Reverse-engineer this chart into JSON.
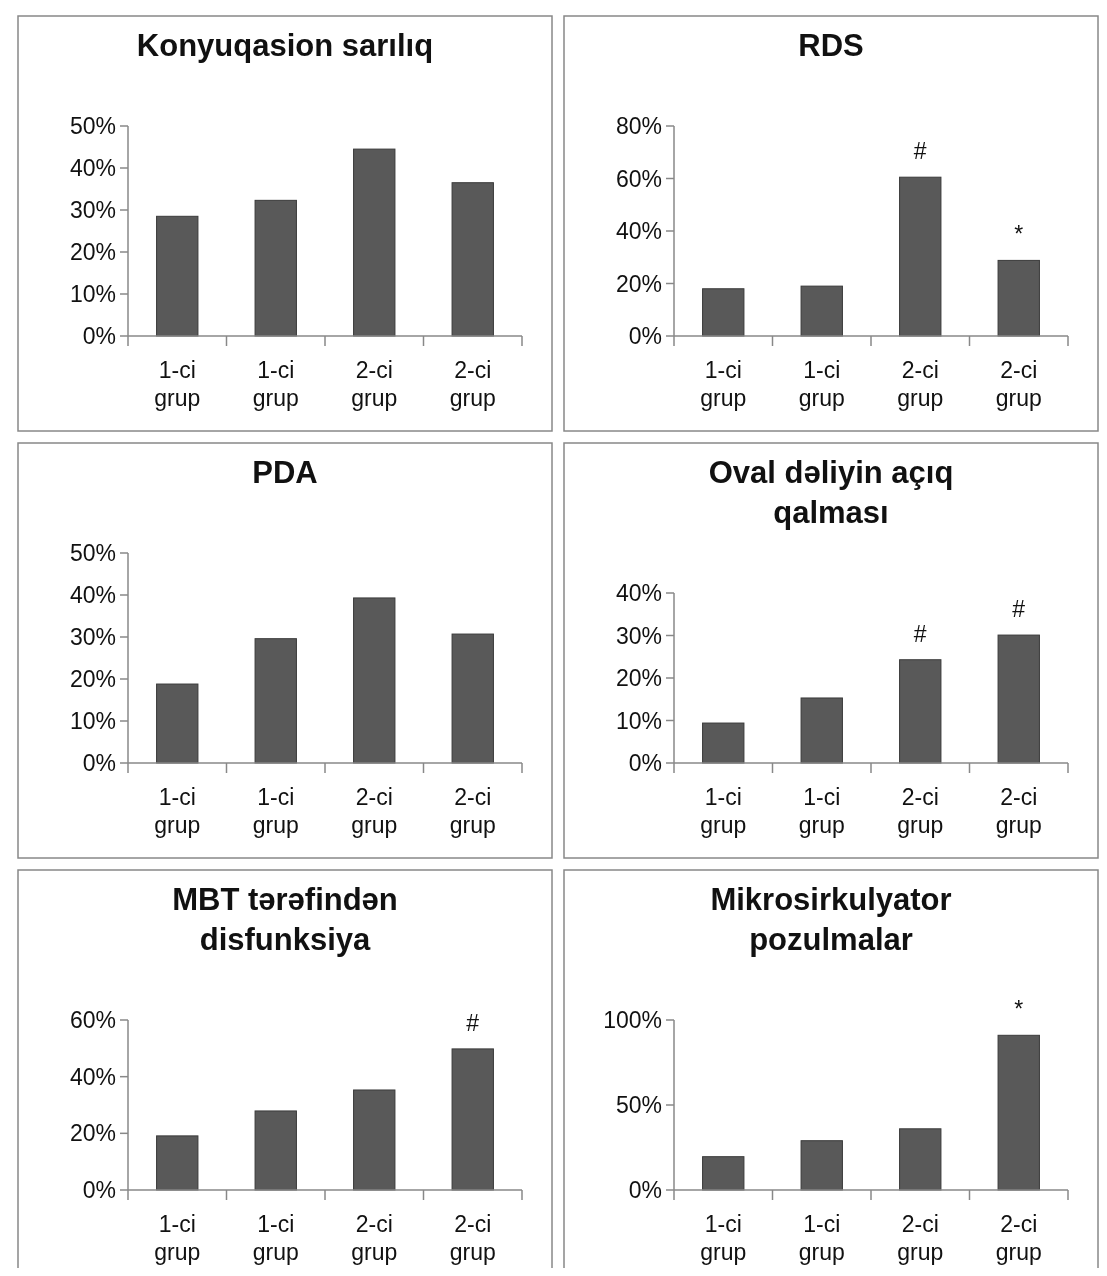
{
  "chart_data": [
    {
      "type": "bar",
      "title": "Konyuqasion sarılıq",
      "categories": [
        "1-ci grup",
        "1-ci grup",
        "2-ci grup",
        "2-ci grup"
      ],
      "values": [
        28.5,
        32.3,
        44.5,
        36.5
      ],
      "color": "#595959",
      "ylim": [
        0,
        50
      ],
      "yticks": [
        {
          "value": 0,
          "label": "0%"
        },
        {
          "value": 10,
          "label": "10%"
        },
        {
          "value": 20,
          "label": "20%"
        },
        {
          "value": 30,
          "label": "30%"
        },
        {
          "value": 40,
          "label": "40%"
        },
        {
          "value": 50,
          "label": "50%"
        }
      ]
    },
    {
      "type": "bar",
      "title": "RDS",
      "categories": [
        "1-ci grup",
        "1-ci grup",
        "2-ci grup",
        "2-ci grup"
      ],
      "values": [
        18,
        19,
        60.5,
        28.8
      ],
      "value_labels": [
        null,
        null,
        "#",
        "*"
      ],
      "color": "#595959",
      "ylim": [
        0,
        80
      ],
      "yticks": [
        {
          "value": 0,
          "label": "0%"
        },
        {
          "value": 20,
          "label": "20%"
        },
        {
          "value": 40,
          "label": "40%"
        },
        {
          "value": 60,
          "label": "60%"
        },
        {
          "value": 80,
          "label": "80%"
        }
      ]
    },
    {
      "type": "bar",
      "title": "PDA",
      "categories": [
        "1-ci grup",
        "1-ci grup",
        "2-ci grup",
        "2-ci grup"
      ],
      "values": [
        18.8,
        29.6,
        39.3,
        30.7
      ],
      "color": "#595959",
      "ylim": [
        0,
        50
      ],
      "yticks": [
        {
          "value": 0,
          "label": "0%"
        },
        {
          "value": 10,
          "label": "10%"
        },
        {
          "value": 20,
          "label": "20%"
        },
        {
          "value": 30,
          "label": "30%"
        },
        {
          "value": 40,
          "label": "40%"
        },
        {
          "value": 50,
          "label": "50%"
        }
      ]
    },
    {
      "type": "bar",
      "title": "Oval dəliyin açıq qalması",
      "categories": [
        "1-ci grup",
        "1-ci grup",
        "2-ci grup",
        "2-ci grup"
      ],
      "values": [
        9.4,
        15.3,
        24.3,
        30.1
      ],
      "value_labels": [
        null,
        null,
        "#",
        "#"
      ],
      "color": "#595959",
      "ylim": [
        0,
        40
      ],
      "yticks": [
        {
          "value": 0,
          "label": "0%"
        },
        {
          "value": 10,
          "label": "10%"
        },
        {
          "value": 20,
          "label": "20%"
        },
        {
          "value": 30,
          "label": "30%"
        },
        {
          "value": 40,
          "label": "40%"
        }
      ]
    },
    {
      "type": "bar",
      "title": "MBT tərəfindən disfunksiya",
      "categories": [
        "1-ci grup",
        "1-ci grup",
        "2-ci grup",
        "2-ci grup"
      ],
      "values": [
        19.1,
        27.9,
        35.3,
        49.8
      ],
      "value_labels": [
        null,
        null,
        null,
        "#"
      ],
      "color": "#595959",
      "ylim": [
        0,
        60
      ],
      "yticks": [
        {
          "value": 0,
          "label": "0%"
        },
        {
          "value": 20,
          "label": "20%"
        },
        {
          "value": 40,
          "label": "40%"
        },
        {
          "value": 60,
          "label": "60%"
        }
      ]
    },
    {
      "type": "bar",
      "title": "Mikrosirkulyator pozulmalar",
      "categories": [
        "1-ci grup",
        "1-ci grup",
        "2-ci grup",
        "2-ci grup"
      ],
      "values": [
        19.6,
        29,
        36,
        91
      ],
      "value_labels": [
        null,
        null,
        null,
        "*"
      ],
      "color": "#595959",
      "ylim": [
        0,
        100
      ],
      "yticks": [
        {
          "value": 0,
          "label": "0%"
        },
        {
          "value": 50,
          "label": "50%"
        },
        {
          "value": 100,
          "label": "100%"
        }
      ]
    }
  ]
}
